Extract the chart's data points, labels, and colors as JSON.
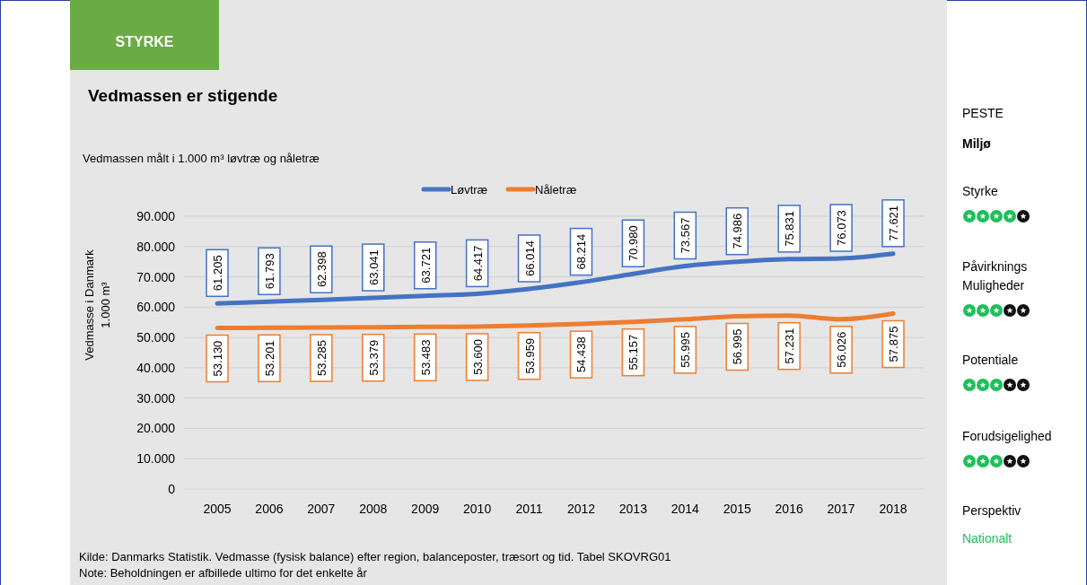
{
  "chart_data": [
    {
      "type": "line",
      "title": "Vedmassen er stigende",
      "subtitle": "Vedmassen målt i 1.000 m³ løvtræ og nåletræ",
      "ylabel": "Vedmasse i Danmark\n1.000 m³",
      "annotations": [
        "STYRKE",
        "Kilde: Danmarks Statistik. Vedmasse (fysisk balance) efter region, balanceposter, træsort og tid. Tabel SKOVRG01",
        "Note: Beholdningen er afbillede ultimo for det enkelte år"
      ],
      "categories": [
        "2005",
        "2006",
        "2007",
        "2008",
        "2009",
        "2010",
        "2011",
        "2012",
        "2013",
        "2014",
        "2015",
        "2016",
        "2017",
        "2018"
      ],
      "series": [
        {
          "name": "Løvtræ",
          "color": "#4472c4",
          "values": [
            61205,
            61793,
            62398,
            63041,
            63721,
            64417,
            66014,
            68214,
            70980,
            73567,
            74986,
            75831,
            76073,
            77621
          ],
          "value_labels": [
            "61.205",
            "61.793",
            "62.398",
            "63.041",
            "63.721",
            "64.417",
            "66.014",
            "68.214",
            "70.980",
            "73.567",
            "74.986",
            "75.831",
            "76.073",
            "77.621"
          ]
        },
        {
          "name": "Nåletræ",
          "color": "#ed7d31",
          "values": [
            53130,
            53201,
            53285,
            53379,
            53483,
            53600,
            53959,
            54438,
            55157,
            55995,
            56995,
            57231,
            56026,
            57875
          ],
          "value_labels": [
            "53.130",
            "53.201",
            "53.285",
            "53.379",
            "53.483",
            "53.600",
            "53.959",
            "54.438",
            "55.157",
            "55.995",
            "56.995",
            "57.231",
            "56.026",
            "57.875"
          ]
        }
      ],
      "ylim": [
        0,
        90000
      ],
      "yticks": [
        0,
        {
          "value": 10000,
          "label": "10.000"
        },
        {
          "value": 20000,
          "label": "20.000"
        },
        {
          "value": 30000,
          "label": "30.000"
        },
        {
          "value": 40000,
          "label": "40.000"
        },
        {
          "value": 50000,
          "label": "50.000"
        },
        {
          "value": 60000,
          "label": "60.000"
        },
        {
          "value": 70000,
          "label": "70.000"
        },
        {
          "value": 80000,
          "label": "80.000"
        },
        {
          "value": 90000,
          "label": "90.000"
        }
      ],
      "grid": "y",
      "legend": "top",
      "marker": "none",
      "line_style": "solid"
    },
    {
      "type": "other",
      "title": "PESTE",
      "annotations": [
        "Miljø",
        "Styrke",
        "Påvirknings Muligheder",
        "Potentiale",
        "Forudsigelighed",
        "Perspektiv",
        "Nationalt"
      ]
    }
  ]
}
